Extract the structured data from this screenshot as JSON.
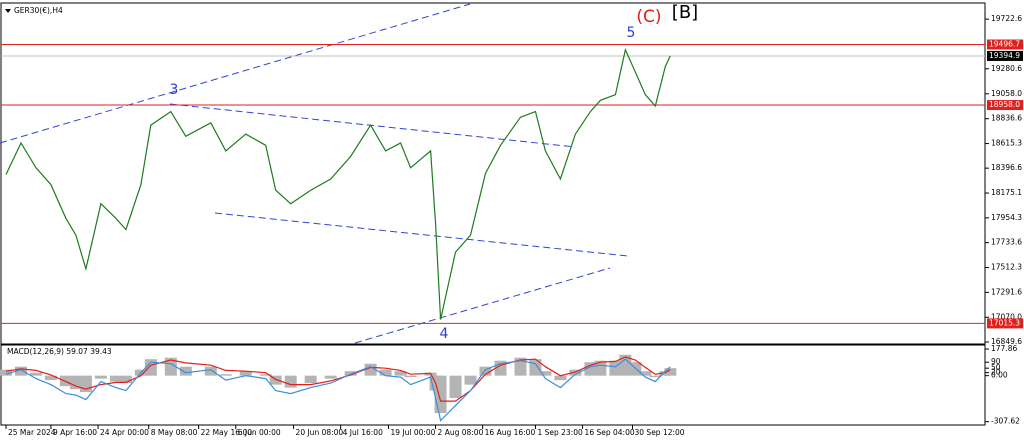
{
  "chart_data": [
    {
      "type": "line",
      "title": "GER30(€),H4",
      "x": [
        0,
        21,
        42,
        63,
        84,
        98,
        112,
        133,
        154,
        168,
        189,
        203,
        231,
        252,
        287,
        308,
        336,
        364,
        378,
        399,
        427,
        455,
        483,
        511,
        532,
        553,
        567,
        595,
        602,
        609,
        630,
        651,
        672,
        693,
        721,
        742,
        756,
        777,
        798,
        819,
        833,
        854,
        868,
        882,
        896,
        910,
        924,
        931
      ],
      "series": [
        {
          "color": "#1f7a1f",
          "values": [
            18340,
            18620,
            18400,
            18250,
            17950,
            17800,
            17500,
            18080,
            17950,
            17850,
            18250,
            18780,
            18900,
            18680,
            18800,
            18550,
            18700,
            18600,
            18200,
            18080,
            18200,
            18300,
            18500,
            18780,
            18550,
            18620,
            18400,
            18550,
            17900,
            17050,
            17650,
            17800,
            18350,
            18600,
            18850,
            18900,
            18550,
            18300,
            18700,
            18900,
            19000,
            19050,
            19450,
            19250,
            19050,
            18950,
            19300,
            19395
          ]
        }
      ],
      "xlim": [
        -7,
        1372
      ],
      "xticks": [
        {
          "value": 0,
          "label": "25 Mar 2024"
        },
        {
          "value": 63,
          "label": "9 Apr 16:00"
        },
        {
          "value": 129,
          "label": "24 Apr 00:00"
        },
        {
          "value": 200,
          "label": "8 May 08:00"
        },
        {
          "value": 270,
          "label": "22 May 16:00"
        },
        {
          "value": 322,
          "label": "6 Jun 00:00"
        },
        {
          "value": 403,
          "label": "20 Jun 08:00"
        },
        {
          "value": 469,
          "label": "4 Jul 16:00"
        },
        {
          "value": 536,
          "label": "19 Jul 00:00"
        },
        {
          "value": 602,
          "label": "2 Aug 08:00"
        },
        {
          "value": 668,
          "label": "16 Aug 16:00"
        },
        {
          "value": 742,
          "label": "1 Sep 23:00"
        },
        {
          "value": 808,
          "label": "16 Sep 04:00"
        },
        {
          "value": 878,
          "label": "30 Sep 12:00"
        }
      ],
      "ylim": [
        16832,
        19866
      ],
      "yticks": [
        19722.6,
        19280.6,
        {
          "value": 19058.0,
          "label": "19058.0"
        },
        18836.6,
        18615.3,
        18396.6,
        18175.1,
        17954.3,
        17733.6,
        17512.3,
        17291.6,
        {
          "value": 17070.0,
          "label": "17070.0"
        },
        16849.6
      ],
      "levels": [
        19496.7,
        {
          "value": 18958.0,
          "label": "18958.0"
        },
        17015.3
      ],
      "level_color": "#e0201c",
      "current_price": 19394.9,
      "annotations": [
        "3",
        "4",
        "5",
        "(C)",
        "[B]"
      ]
    },
    {
      "type": "macd",
      "title": "MACD(12,26,9) 59.07 39.43",
      "ylim": [
        -330,
        205
      ],
      "yticks": [
        177.86,
        90,
        {
          "value": 0,
          "label": "0.00"
        },
        50,
        20,
        -307.62
      ],
      "series": [
        {
          "type": "bar",
          "color": "#b4b4b4",
          "values": [
            40,
            60,
            20,
            -30,
            -70,
            -90,
            -110,
            -20,
            -40,
            -50,
            40,
            110,
            120,
            60,
            60,
            10,
            30,
            10,
            -60,
            -80,
            -50,
            -20,
            30,
            80,
            40,
            30,
            -10,
            20,
            -100,
            -250,
            -150,
            -60,
            60,
            100,
            120,
            110,
            30,
            -30,
            40,
            90,
            100,
            100,
            140,
            90,
            30,
            -10,
            30,
            50
          ]
        },
        {
          "type": "line",
          "color": "#e0201c",
          "values": [
            30,
            45,
            35,
            5,
            -40,
            -70,
            -90,
            -60,
            -45,
            -45,
            0,
            70,
            105,
            85,
            70,
            35,
            30,
            20,
            -25,
            -60,
            -60,
            -35,
            5,
            55,
            50,
            35,
            10,
            15,
            -50,
            -170,
            -170,
            -100,
            10,
            70,
            105,
            110,
            60,
            0,
            25,
            70,
            90,
            95,
            125,
            105,
            55,
            10,
            20,
            40
          ]
        },
        {
          "type": "line",
          "color": "#3c8de0",
          "values": [
            10,
            40,
            -20,
            -60,
            -120,
            -130,
            -160,
            -40,
            -80,
            -100,
            20,
            90,
            80,
            20,
            40,
            -30,
            0,
            -20,
            -100,
            -120,
            -80,
            -50,
            10,
            60,
            0,
            -10,
            -60,
            -10,
            -150,
            -300,
            -200,
            -100,
            40,
            80,
            100,
            80,
            -20,
            -80,
            10,
            60,
            70,
            60,
            110,
            50,
            -10,
            -40,
            30,
            59.07
          ]
        }
      ]
    }
  ]
}
